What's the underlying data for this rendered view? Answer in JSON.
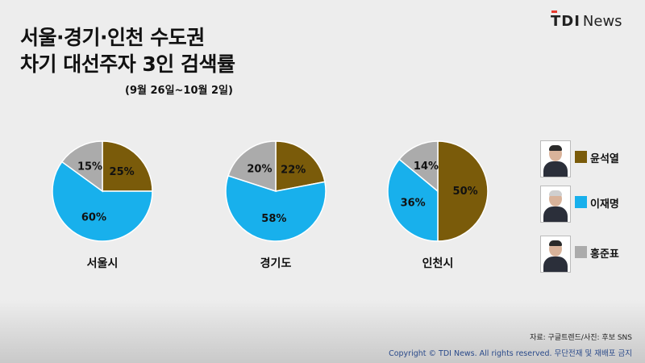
{
  "header": {
    "title_line1": "서울·경기·인천 수도권",
    "title_line2": "차기 대선주자 3인 검색률",
    "period": "(9월 26일~10월 2일)",
    "logo_tdi": "TDI",
    "logo_news": "News"
  },
  "colors": {
    "윤석열": "#7a5b0a",
    "이재명": "#18b0ec",
    "홍준표": "#ababab"
  },
  "chart_data": {
    "type": "pie",
    "title": "서울·경기·인천 수도권 차기 대선주자 3인 검색률",
    "subtitle": "(9월 26일~10월 2일)",
    "series_order": [
      "윤석열",
      "이재명",
      "홍준표"
    ],
    "pies": [
      {
        "name": "서울시",
        "values": [
          25,
          60,
          15
        ],
        "labels": [
          "25%",
          "60%",
          "15%"
        ]
      },
      {
        "name": "경기도",
        "values": [
          22,
          58,
          20
        ],
        "labels": [
          "22%",
          "58%",
          "20%"
        ]
      },
      {
        "name": "인천시",
        "values": [
          50,
          36,
          14
        ],
        "labels": [
          "50%",
          "36%",
          "14%"
        ]
      }
    ],
    "legend": {
      "placement": "right",
      "entries": [
        {
          "name": "윤석열",
          "color": "#7a5b0a",
          "icon": "candidate-photo-icon"
        },
        {
          "name": "이재명",
          "color": "#18b0ec",
          "icon": "candidate-photo-icon"
        },
        {
          "name": "홍준표",
          "color": "#ababab",
          "icon": "candidate-photo-icon"
        }
      ]
    }
  },
  "footer": {
    "source": "자료: 구글트렌드/사진: 후보 SNS",
    "copyright": "Copyright © TDI News. All rights reserved. 무단전재 및 재배포 금지"
  }
}
